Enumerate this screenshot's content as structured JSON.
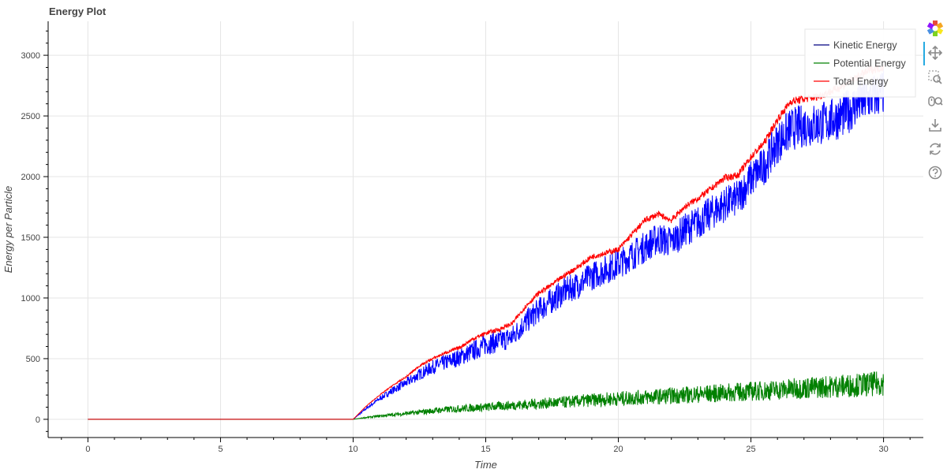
{
  "title": "Energy Plot",
  "toolbar": {
    "tools": [
      "bokeh-logo-icon",
      "pan-icon",
      "box-zoom-icon",
      "wheel-zoom-icon",
      "save-icon",
      "reset-icon",
      "help-icon"
    ],
    "active_tool": "pan-icon"
  },
  "chart_data": {
    "type": "line",
    "title": "Energy Plot",
    "xlabel": "Time",
    "ylabel": "Energy per Particle",
    "xlim": [
      -1.5,
      31.5
    ],
    "ylim": [
      -150,
      3280
    ],
    "xticks": [
      0,
      5,
      10,
      15,
      20,
      25,
      30
    ],
    "yticks": [
      0,
      500,
      1000,
      1500,
      2000,
      2500,
      3000
    ],
    "grid": true,
    "legend_position": "top-right",
    "series": [
      {
        "name": "Kinetic Energy",
        "color": "#0000ff",
        "legend_color": "#000080",
        "x": [
          0,
          10,
          10.5,
          11,
          11.5,
          12,
          12.5,
          13,
          13.5,
          14,
          14.5,
          15,
          15.5,
          16,
          16.5,
          17,
          17.5,
          18,
          18.5,
          19,
          19.5,
          20,
          20.5,
          21,
          21.5,
          22,
          22.5,
          23,
          23.5,
          24,
          24.5,
          25,
          25.5,
          26,
          26.5,
          27,
          27.5,
          28,
          28.5,
          29,
          29.5,
          30
        ],
        "y": [
          0,
          0,
          90,
          170,
          240,
          300,
          370,
          430,
          470,
          510,
          560,
          620,
          640,
          680,
          800,
          900,
          980,
          1060,
          1110,
          1180,
          1230,
          1280,
          1350,
          1420,
          1490,
          1460,
          1560,
          1620,
          1700,
          1770,
          1820,
          1980,
          2090,
          2280,
          2390,
          2420,
          2430,
          2460,
          2510,
          2600,
          2650,
          2700
        ]
      },
      {
        "name": "Potential Energy",
        "color": "#008000",
        "legend_color": "#008000",
        "x": [
          0,
          10,
          10.5,
          11,
          11.5,
          12,
          12.5,
          13,
          13.5,
          14,
          14.5,
          15,
          15.5,
          16,
          16.5,
          17,
          17.5,
          18,
          18.5,
          19,
          19.5,
          20,
          20.5,
          21,
          21.5,
          22,
          22.5,
          23,
          23.5,
          24,
          24.5,
          25,
          25.5,
          26,
          26.5,
          27,
          27.5,
          28,
          28.5,
          29,
          29.5,
          30
        ],
        "y": [
          0,
          0,
          15,
          28,
          38,
          48,
          58,
          70,
          80,
          88,
          95,
          100,
          108,
          115,
          122,
          128,
          135,
          142,
          150,
          158,
          165,
          170,
          176,
          182,
          188,
          195,
          200,
          206,
          212,
          218,
          224,
          230,
          236,
          242,
          250,
          258,
          264,
          270,
          276,
          282,
          288,
          300
        ]
      },
      {
        "name": "Total Energy",
        "color": "#ff0000",
        "legend_color": "#ff0000",
        "x": [
          0,
          10,
          10.5,
          11,
          11.5,
          12,
          12.5,
          13,
          13.5,
          14,
          14.5,
          15,
          15.5,
          16,
          16.5,
          17,
          17.5,
          18,
          18.5,
          19,
          19.5,
          20,
          20.5,
          21,
          21.5,
          22,
          22.5,
          23,
          23.5,
          24,
          24.5,
          25,
          25.5,
          26,
          26.5,
          27,
          27.5,
          28,
          28.5,
          29,
          29.5,
          30
        ],
        "y": [
          0,
          0,
          110,
          200,
          280,
          350,
          440,
          500,
          550,
          590,
          660,
          710,
          740,
          790,
          930,
          1040,
          1110,
          1190,
          1260,
          1340,
          1370,
          1400,
          1520,
          1640,
          1690,
          1640,
          1750,
          1820,
          1900,
          1990,
          2010,
          2160,
          2280,
          2470,
          2620,
          2640,
          2660,
          2700,
          2750,
          2820,
          2880,
          2900
        ]
      }
    ]
  }
}
